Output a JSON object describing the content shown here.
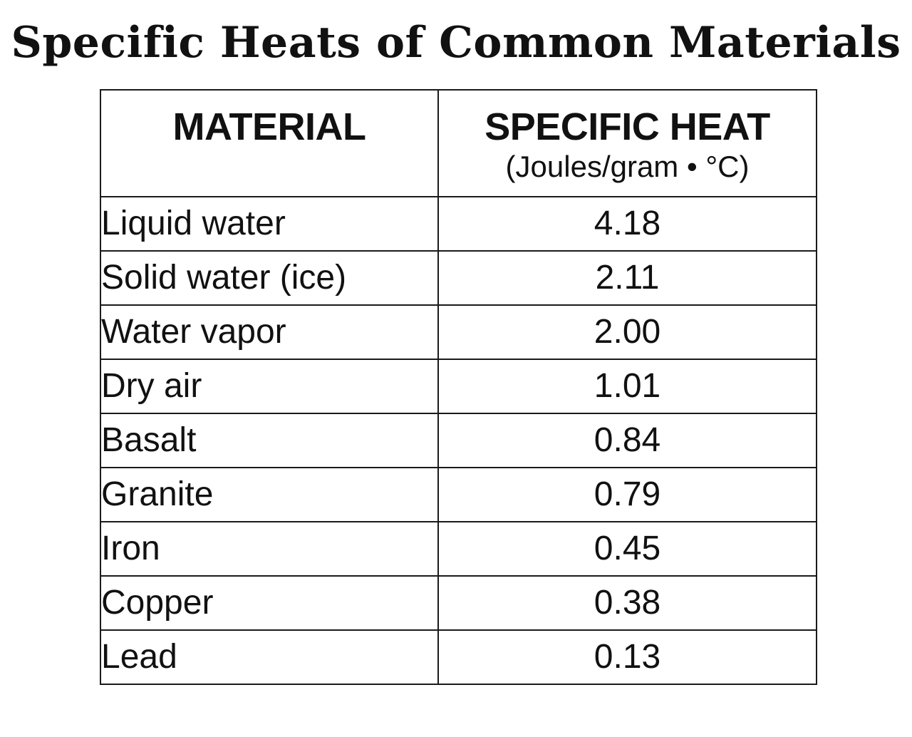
{
  "title": "Specific Heats of Common Materials",
  "table": {
    "headers": {
      "material": "MATERIAL",
      "specific_heat": "SPECIFIC HEAT",
      "unit": "(Joules/gram • °C)"
    },
    "rows": [
      {
        "material": "Liquid water",
        "value": "4.18"
      },
      {
        "material": "Solid water (ice)",
        "value": "2.11"
      },
      {
        "material": "Water vapor",
        "value": "2.00"
      },
      {
        "material": "Dry air",
        "value": "1.01"
      },
      {
        "material": "Basalt",
        "value": "0.84"
      },
      {
        "material": "Granite",
        "value": "0.79"
      },
      {
        "material": "Iron",
        "value": "0.45"
      },
      {
        "material": "Copper",
        "value": "0.38"
      },
      {
        "material": "Lead",
        "value": "0.13"
      }
    ]
  }
}
